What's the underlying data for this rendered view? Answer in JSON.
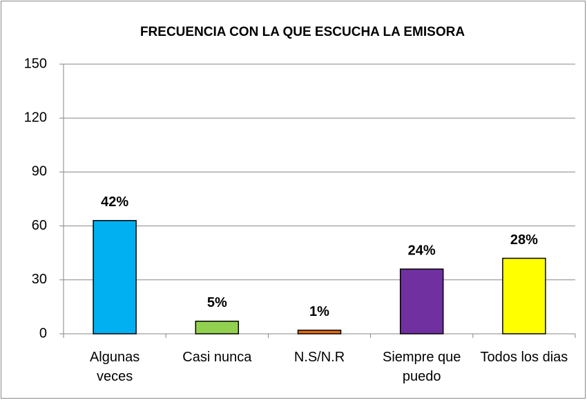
{
  "chart_data": {
    "type": "bar",
    "title": "FRECUENCIA CON LA QUE ESCUCHA LA EMISORA",
    "categories": [
      "Algunas veces",
      "Casi nunca",
      "N.S/N.R",
      "Siempre que puedo",
      "Todos los dias"
    ],
    "values": [
      63,
      7,
      2,
      36,
      42
    ],
    "value_labels": [
      "42%",
      "5%",
      "1%",
      "24%",
      "28%"
    ],
    "colors": [
      "#00b0f0",
      "#92d050",
      "#e46c0a",
      "#7030a0",
      "#ffff00"
    ],
    "ylim": [
      0,
      150
    ],
    "yticks": [
      0,
      30,
      60,
      90,
      120,
      150
    ],
    "grid": true
  }
}
